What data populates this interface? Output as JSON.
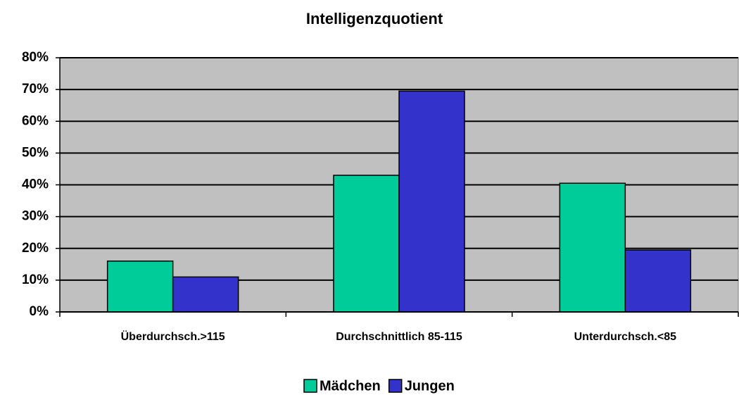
{
  "chart_data": {
    "type": "bar",
    "title": "Intelligenzquotient",
    "categories": [
      "Überdurchsch.>115",
      "Durchschnittlich 85-115",
      "Unterdurchsch.<85"
    ],
    "series": [
      {
        "name": "Mädchen",
        "color": "#00cc99",
        "values": [
          16,
          43,
          40.5
        ]
      },
      {
        "name": "Jungen",
        "color": "#3333cc",
        "values": [
          11,
          69.5,
          19.5
        ]
      }
    ],
    "ylim": [
      0,
      80
    ],
    "yticks": [
      {
        "value": 0,
        "label": "0%"
      },
      {
        "value": 10,
        "label": "10%"
      },
      {
        "value": 20,
        "label": "20%"
      },
      {
        "value": 30,
        "label": "30%"
      },
      {
        "value": 40,
        "label": "40%"
      },
      {
        "value": 50,
        "label": "50%"
      },
      {
        "value": 60,
        "label": "60%"
      },
      {
        "value": 70,
        "label": "70%"
      },
      {
        "value": 80,
        "label": "80%"
      }
    ],
    "grid": true,
    "legend": "bottom"
  }
}
